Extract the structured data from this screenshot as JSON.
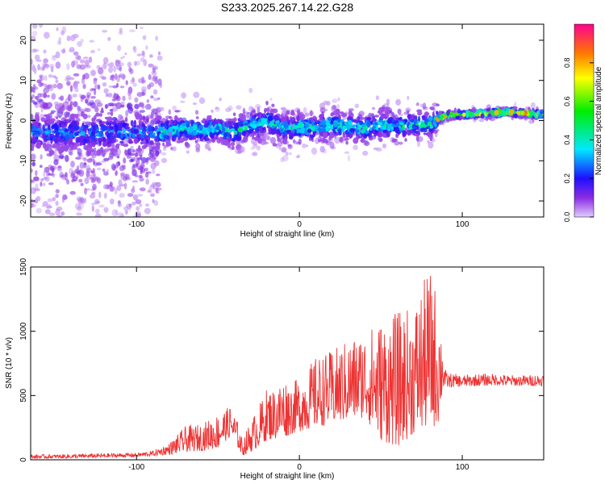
{
  "title": "S233.2025.267.14.22.G28",
  "colors": {
    "snr_line": "#ee3333",
    "scatter_faint": "#d8c2f6",
    "scatter_dense": "#6a10d8",
    "scatter_core": "#3a14c0"
  },
  "chart_data": [
    {
      "type": "heatmap",
      "xlabel": "Height of straight line (km)",
      "ylabel": "Frequency (Hz)",
      "xlim": [
        -165,
        150
      ],
      "ylim": [
        -24,
        24
      ],
      "xticks": [
        -100,
        0,
        100
      ],
      "xtick_labels": [
        "-100",
        "0",
        "100"
      ],
      "yticks": [
        -20,
        -10,
        0,
        10,
        20
      ],
      "ytick_labels": [
        "-20",
        "-10",
        "0",
        "10",
        "20"
      ],
      "grid": false,
      "colorbar": {
        "label": "Normalized spectral amplitude",
        "range": [
          0,
          1
        ],
        "ticks": [
          0.0,
          0.2,
          0.4,
          0.6,
          0.8
        ],
        "tick_labels": [
          "0.0",
          "0.2",
          "0.4",
          "0.6",
          "0.8"
        ]
      },
      "segments": [
        {
          "x_range": [
            -165,
            -85
          ],
          "center_freq_hz": -2.5,
          "spread_hz": 24,
          "peak_amplitude": 0.35
        },
        {
          "x_range": [
            -85,
            85
          ],
          "center_freq_hz": -1.5,
          "spread_hz": 6,
          "peak_amplitude": 0.5
        },
        {
          "x_range": [
            85,
            150
          ],
          "center_freq_hz": 1.8,
          "spread_hz": 1.5,
          "peak_amplitude": 0.95
        }
      ],
      "ridge": {
        "x": [
          -160,
          -140,
          -120,
          -100,
          -85,
          -70,
          -60,
          -50,
          -40,
          -30,
          -20,
          -10,
          0,
          10,
          20,
          30,
          40,
          50,
          60,
          70,
          80,
          85,
          90,
          100,
          110,
          120,
          130,
          140,
          150
        ],
        "y": [
          -3,
          -3,
          -3,
          -3,
          -3,
          -2,
          -2.5,
          -2,
          -3,
          -1,
          0,
          -2,
          -1.5,
          -2,
          -1,
          -1.5,
          -2,
          -1,
          -1.5,
          -1,
          -1,
          0.5,
          1.2,
          1.5,
          1.8,
          2,
          2,
          1.8,
          1.5
        ]
      }
    },
    {
      "type": "line",
      "xlabel": "Height of straight line (km)",
      "ylabel": "SNR (10 * v/v)",
      "xlim": [
        -165,
        150
      ],
      "ylim": [
        0,
        1500
      ],
      "xticks": [
        -100,
        0,
        100
      ],
      "xtick_labels": [
        "-100",
        "0",
        "100"
      ],
      "yticks": [
        0,
        500,
        1000,
        1500
      ],
      "ytick_labels": [
        "0",
        "500",
        "1000",
        "1500"
      ],
      "grid": false,
      "series": [
        {
          "name": "SNR",
          "x": [
            -165,
            -140,
            -120,
            -100,
            -90,
            -80,
            -70,
            -60,
            -50,
            -45,
            -42,
            -38,
            -35,
            -30,
            -25,
            -20,
            -15,
            -10,
            -5,
            0,
            10,
            20,
            30,
            40,
            50,
            60,
            70,
            80,
            85,
            88,
            90,
            100,
            110,
            120,
            130,
            140,
            150
          ],
          "values": [
            25,
            28,
            35,
            40,
            50,
            80,
            130,
            160,
            210,
            260,
            280,
            190,
            80,
            150,
            240,
            300,
            320,
            340,
            370,
            400,
            440,
            480,
            530,
            580,
            600,
            620,
            640,
            650,
            640,
            620,
            610,
            615,
            620,
            625,
            620,
            615,
            620
          ],
          "envelope_max": [
            40,
            45,
            50,
            55,
            70,
            130,
            260,
            280,
            360,
            400,
            420,
            300,
            160,
            300,
            420,
            560,
            560,
            650,
            600,
            640,
            800,
            850,
            940,
            1000,
            1100,
            1150,
            1200,
            1500,
            1300,
            900,
            680,
            660,
            670,
            670,
            660,
            660,
            670
          ],
          "envelope_min": [
            10,
            12,
            18,
            22,
            30,
            40,
            60,
            70,
            90,
            150,
            180,
            100,
            30,
            60,
            100,
            150,
            160,
            170,
            200,
            220,
            250,
            280,
            300,
            330,
            150,
            100,
            200,
            250,
            260,
            540,
            560,
            570,
            575,
            580,
            575,
            575,
            575
          ]
        }
      ]
    }
  ]
}
